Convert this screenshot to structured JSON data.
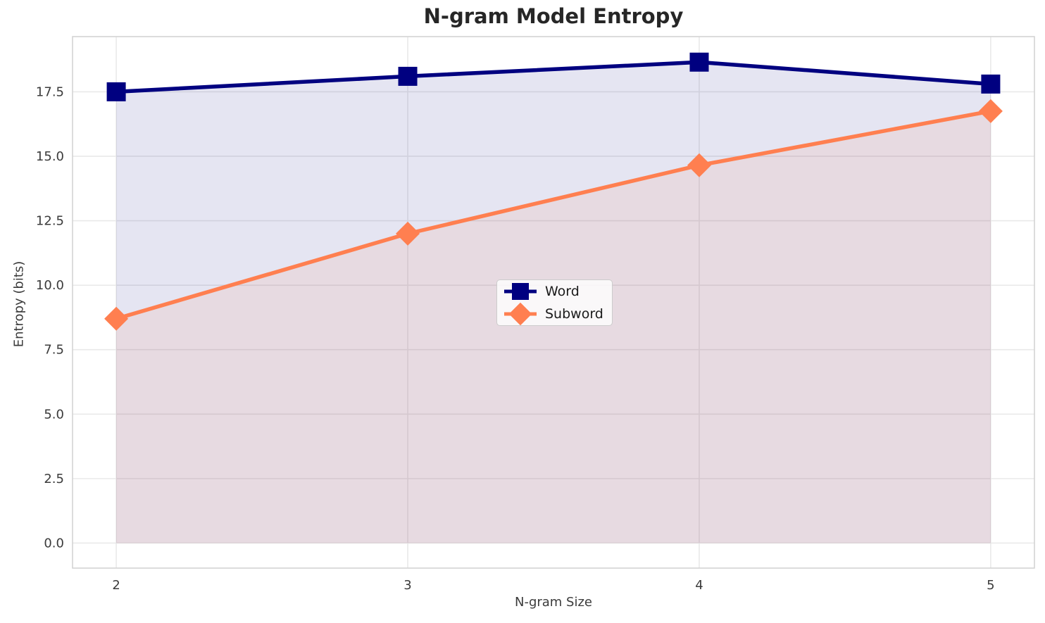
{
  "chart_data": {
    "type": "line",
    "title": "N-gram Model Entropy",
    "xlabel": "N-gram Size",
    "ylabel": "Entropy (bits)",
    "x": [
      2,
      3,
      4,
      5
    ],
    "series": [
      {
        "name": "Word",
        "values": [
          17.5,
          18.1,
          18.65,
          17.8
        ],
        "color": "#000080",
        "marker": "square",
        "fill_to_zero": true
      },
      {
        "name": "Subword",
        "values": [
          8.7,
          12.0,
          14.65,
          16.75
        ],
        "color": "#FF7F50",
        "marker": "diamond",
        "fill_to_zero": true
      }
    ],
    "x_tick_labels": [
      "2",
      "3",
      "4",
      "5"
    ],
    "x_tick_values": [
      2,
      3,
      4,
      5
    ],
    "y_tick_labels": [
      "0.0",
      "2.5",
      "5.0",
      "7.5",
      "10.0",
      "12.5",
      "15.0",
      "17.5"
    ],
    "y_tick_values": [
      0,
      2.5,
      5,
      7.5,
      10,
      12.5,
      15,
      17.5
    ],
    "xlim": [
      1.85,
      5.15
    ],
    "ylim": [
      -0.97,
      19.64
    ],
    "grid": true,
    "legend_position": "center",
    "fill_opacity": 0.1,
    "line_width": 5.5,
    "colors": {
      "grid": "#e9e9e9",
      "frame": "#d4d4d4",
      "tick_label": "#3b3b3b",
      "title": "#262626",
      "background": "#ffffff"
    }
  }
}
